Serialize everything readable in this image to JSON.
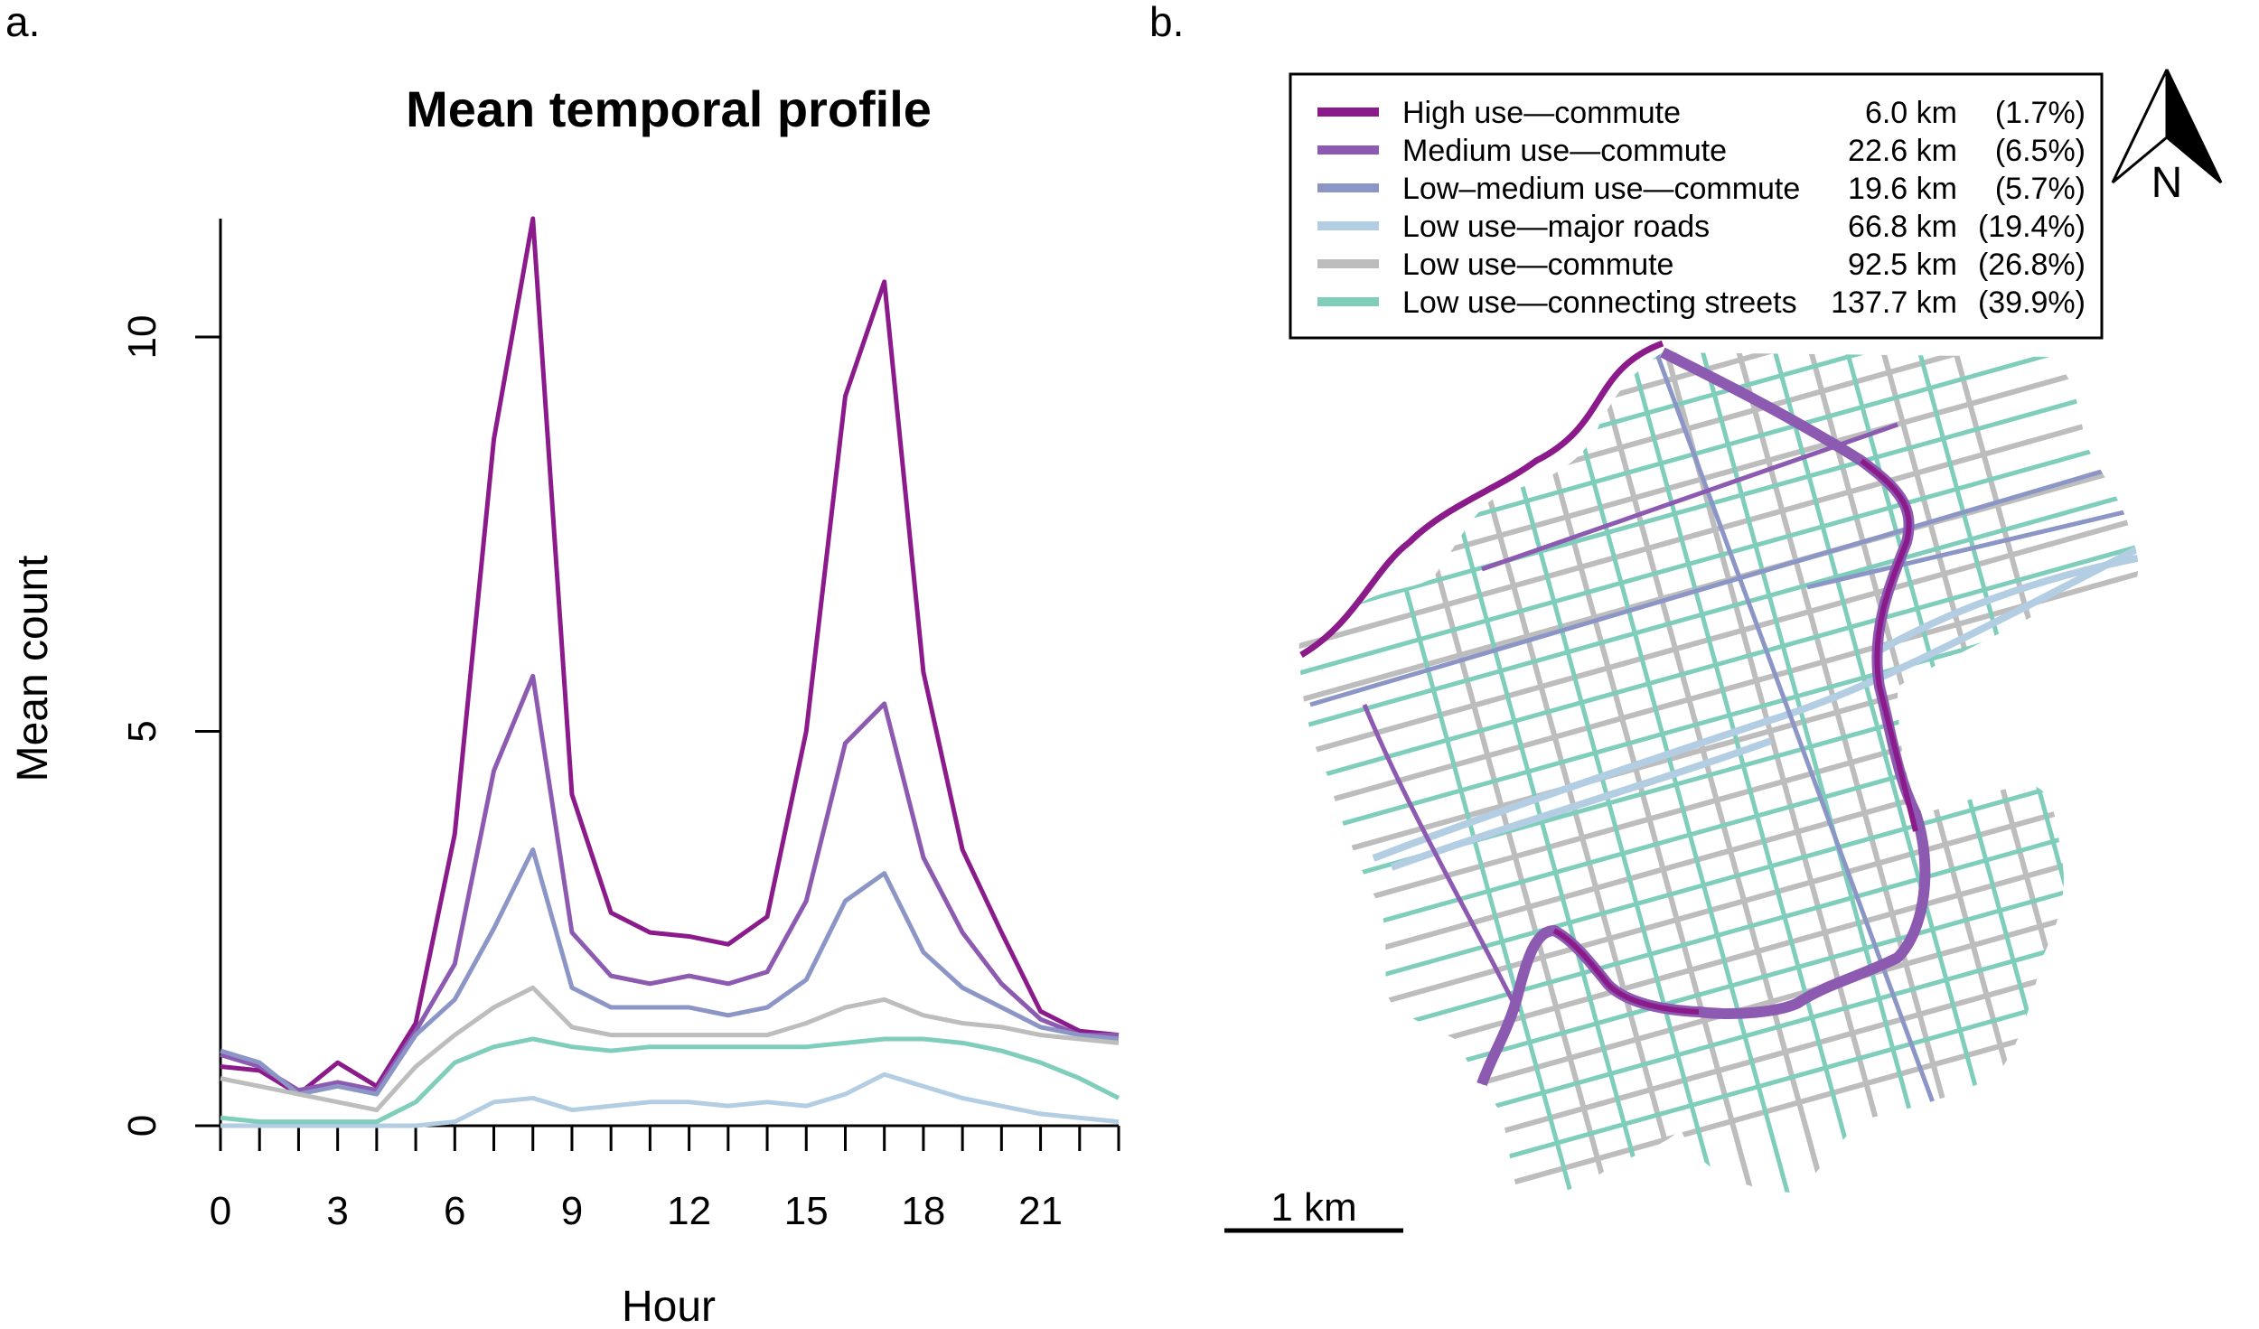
{
  "panel_labels": {
    "a": "a.",
    "b": "b."
  },
  "chart_data": {
    "type": "line",
    "title": "Mean temporal profile",
    "xlabel": "Hour",
    "ylabel": "Mean count",
    "xlim": [
      0,
      23
    ],
    "ylim": [
      0,
      11.5
    ],
    "x_ticks": [
      0,
      3,
      6,
      9,
      12,
      15,
      18,
      21
    ],
    "y_ticks": [
      0,
      5,
      10
    ],
    "x": [
      0,
      1,
      2,
      3,
      4,
      5,
      6,
      7,
      8,
      9,
      10,
      11,
      12,
      13,
      14,
      15,
      16,
      17,
      18,
      19,
      20,
      21,
      22,
      23
    ],
    "series": [
      {
        "name": "High use—commute",
        "color": "#8b1a8b",
        "values": [
          0.75,
          0.7,
          0.4,
          0.8,
          0.5,
          1.3,
          3.7,
          8.7,
          11.5,
          4.2,
          2.7,
          2.45,
          2.4,
          2.3,
          2.65,
          5.0,
          9.25,
          10.7,
          5.75,
          3.5,
          2.45,
          1.45,
          1.2,
          1.15
        ]
      },
      {
        "name": "Medium use—commute",
        "color": "#8c5ab0",
        "values": [
          0.9,
          0.75,
          0.45,
          0.55,
          0.45,
          1.2,
          2.05,
          4.5,
          5.7,
          2.45,
          1.9,
          1.8,
          1.9,
          1.8,
          1.95,
          2.85,
          4.85,
          5.35,
          3.4,
          2.45,
          1.8,
          1.35,
          1.15,
          1.15
        ]
      },
      {
        "name": "Low–medium use—commute",
        "color": "#8c96c6",
        "values": [
          0.95,
          0.8,
          0.4,
          0.5,
          0.4,
          1.15,
          1.6,
          2.5,
          3.5,
          1.75,
          1.5,
          1.5,
          1.5,
          1.4,
          1.5,
          1.85,
          2.85,
          3.2,
          2.2,
          1.75,
          1.5,
          1.25,
          1.15,
          1.1
        ]
      },
      {
        "name": "Low use—major roads",
        "color": "#b3cde3",
        "values": [
          0.0,
          0.0,
          0.0,
          0.0,
          0.0,
          0.0,
          0.05,
          0.3,
          0.35,
          0.2,
          0.25,
          0.3,
          0.3,
          0.25,
          0.3,
          0.25,
          0.4,
          0.65,
          0.5,
          0.35,
          0.25,
          0.15,
          0.1,
          0.05
        ]
      },
      {
        "name": "Low use—commute",
        "color": "#bdbdbd",
        "values": [
          0.6,
          0.5,
          0.4,
          0.3,
          0.2,
          0.75,
          1.15,
          1.5,
          1.75,
          1.25,
          1.15,
          1.15,
          1.15,
          1.15,
          1.15,
          1.3,
          1.5,
          1.6,
          1.4,
          1.3,
          1.25,
          1.15,
          1.1,
          1.05
        ]
      },
      {
        "name": "Low use—connecting streets",
        "color": "#7fcdbb",
        "values": [
          0.1,
          0.05,
          0.05,
          0.05,
          0.05,
          0.3,
          0.8,
          1.0,
          1.1,
          1.0,
          0.95,
          1.0,
          1.0,
          1.0,
          1.0,
          1.0,
          1.05,
          1.1,
          1.1,
          1.05,
          0.95,
          0.8,
          0.6,
          0.35
        ]
      }
    ]
  },
  "map": {
    "legend": [
      {
        "label": "High use—commute",
        "length": "6.0 km",
        "share": "(1.7%)",
        "color": "#8b1a8b"
      },
      {
        "label": "Medium use—commute",
        "length": "22.6 km",
        "share": "(6.5%)",
        "color": "#8c5ab0"
      },
      {
        "label": "Low–medium use—commute",
        "length": "19.6 km",
        "share": "(5.7%)",
        "color": "#8c96c6"
      },
      {
        "label": "Low use—major roads",
        "length": "66.8 km",
        "share": "(19.4%)",
        "color": "#b3cde3"
      },
      {
        "label": "Low use—commute",
        "length": "92.5 km",
        "share": "(26.8%)",
        "color": "#bdbdbd"
      },
      {
        "label": "Low use—connecting streets",
        "length": "137.7 km",
        "share": "(39.9%)",
        "color": "#7fcdbb"
      }
    ],
    "north_label": "N",
    "scale_label": "1 km"
  }
}
